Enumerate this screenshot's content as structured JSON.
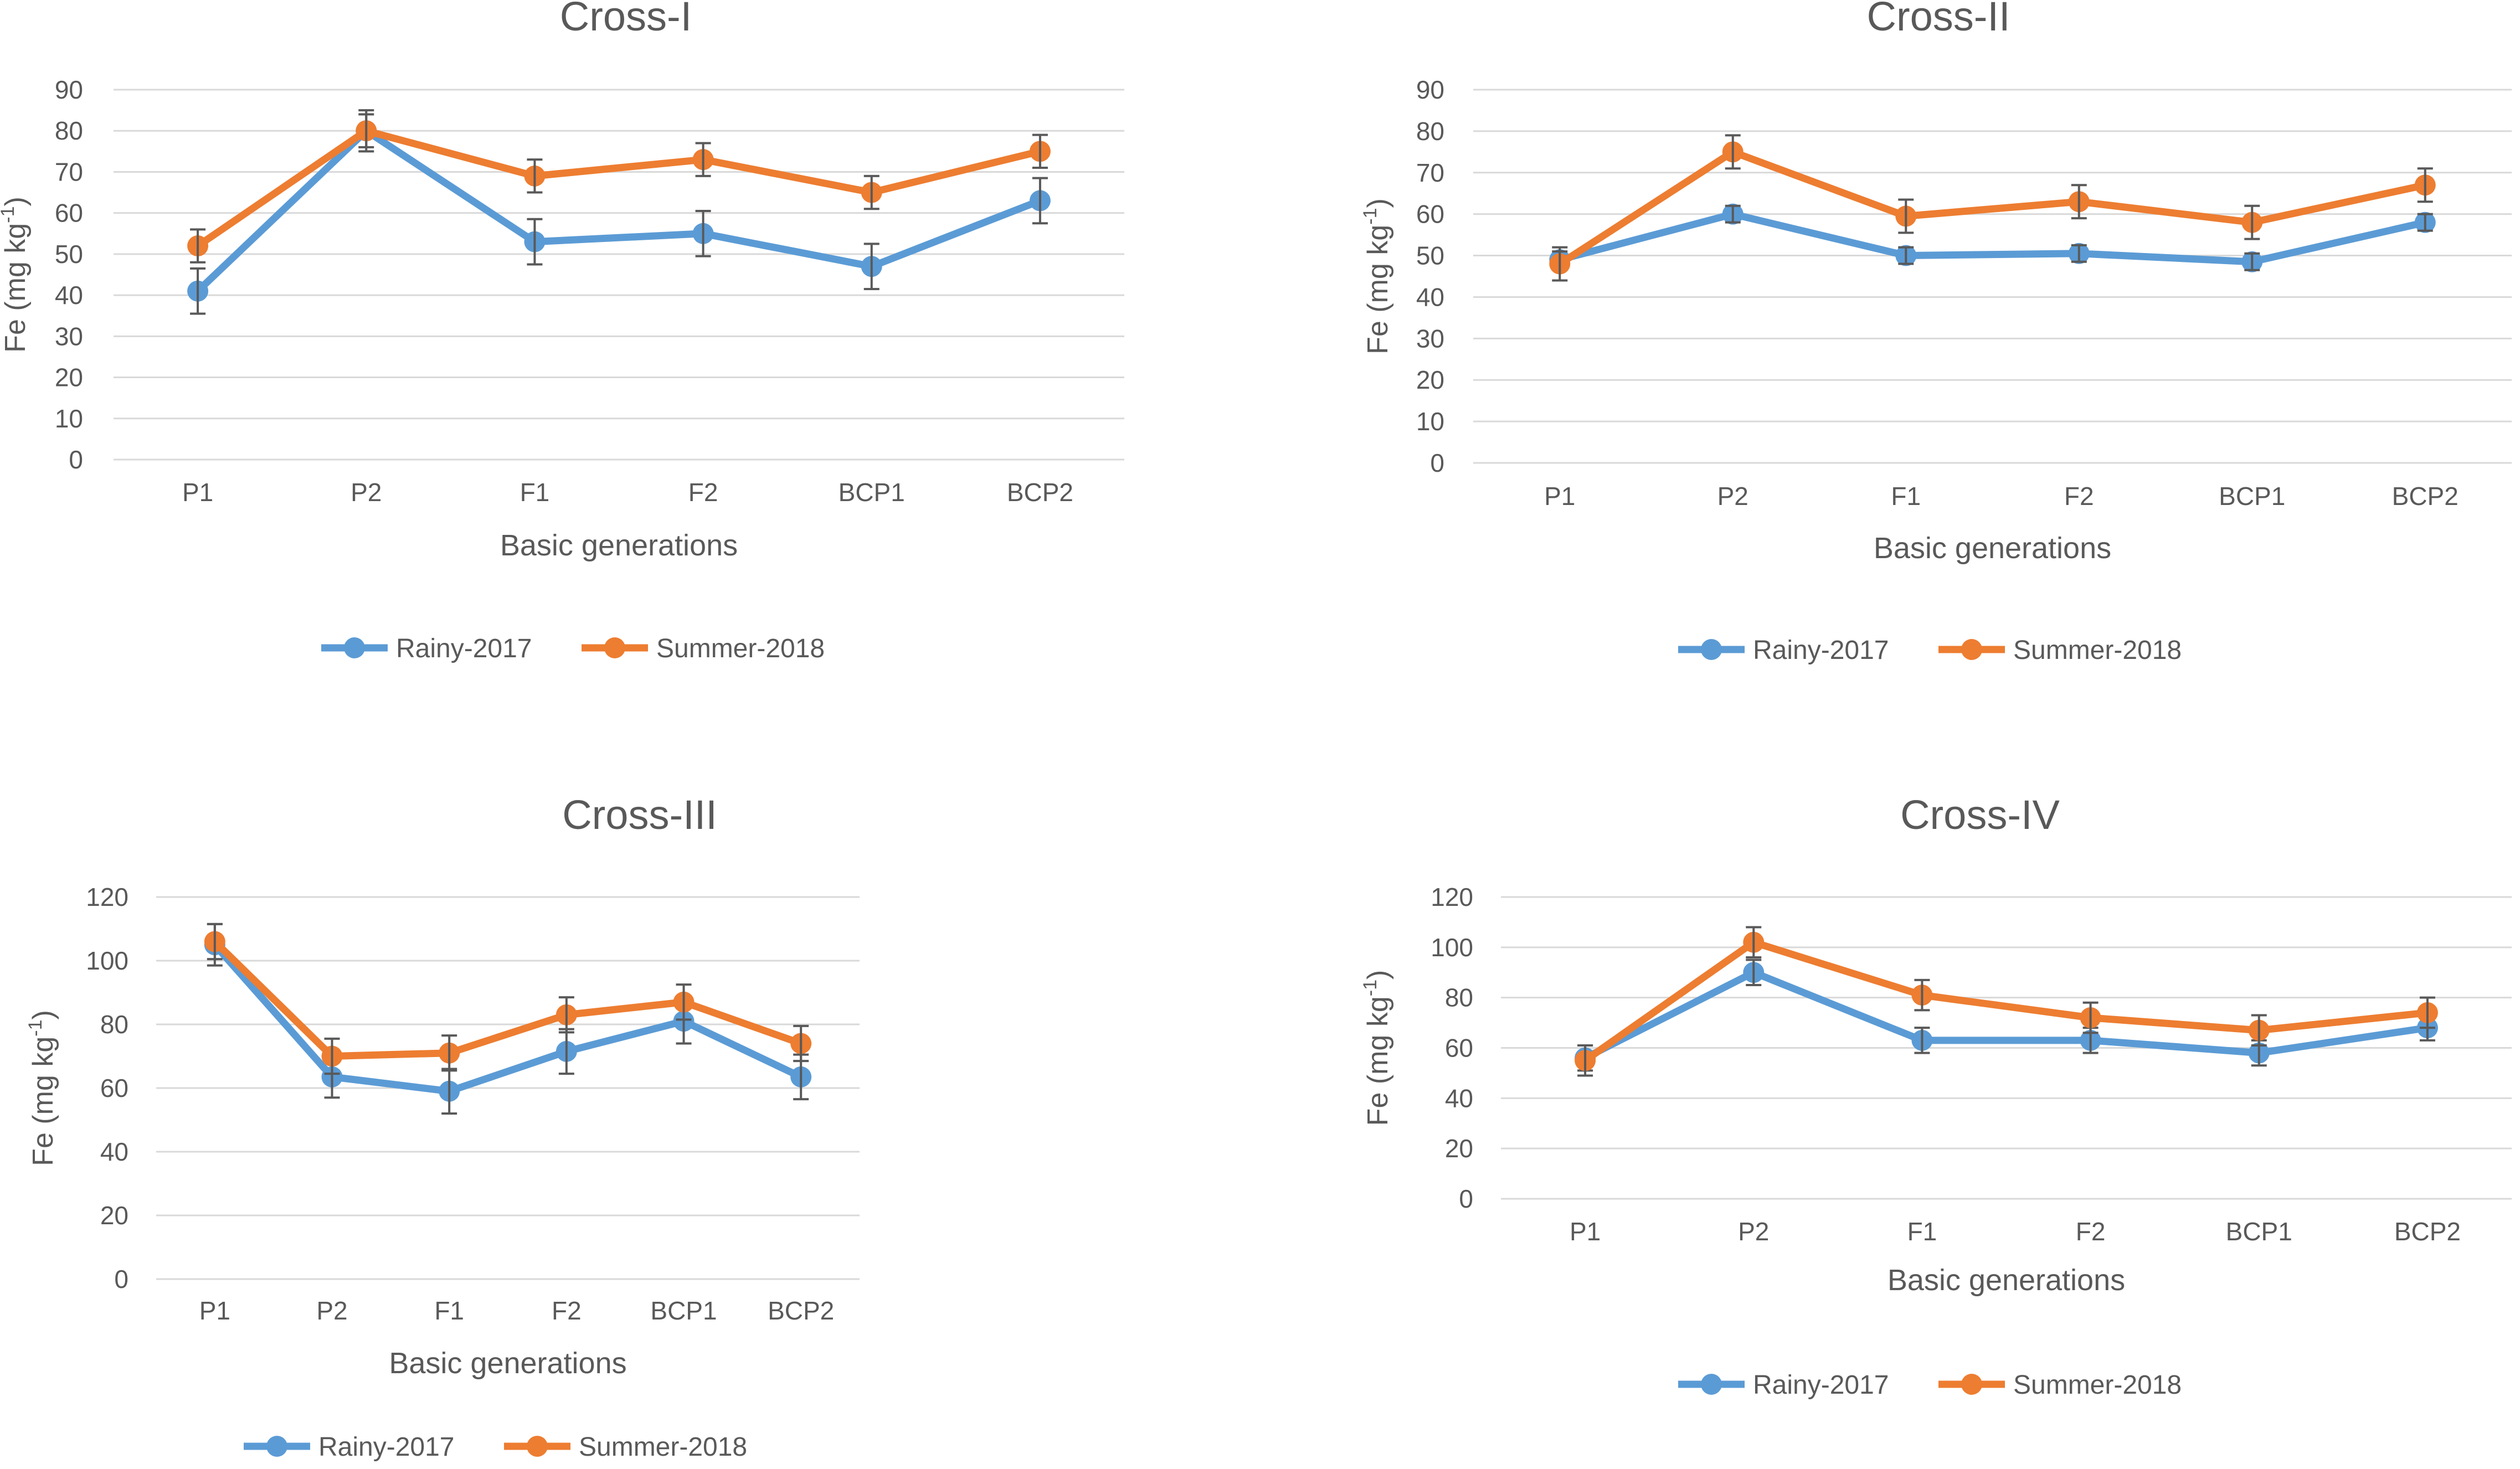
{
  "colors": {
    "rainy": "#5B9BD5",
    "summer": "#ED7D31",
    "grid": "#D9D9D9",
    "text": "#595959",
    "errbar": "#595959"
  },
  "chart_data": [
    {
      "type": "line",
      "title": "Cross-I",
      "xlabel": "Basic generations",
      "ylabel_main": "Fe (mg kg",
      "ylabel_sup": "-1",
      "ylabel_close": ")",
      "categories": [
        "P1",
        "P2",
        "F1",
        "F2",
        "BCP1",
        "BCP2"
      ],
      "ylim": [
        0,
        90
      ],
      "yticks": [
        0,
        10,
        20,
        30,
        40,
        50,
        60,
        70,
        80,
        90
      ],
      "grid": true,
      "legend_position": "bottom",
      "series": [
        {
          "name": "Rainy-2017",
          "values": [
            41,
            80,
            53,
            55,
            47,
            63
          ],
          "errors": [
            5.5,
            4,
            5.5,
            5.5,
            5.5,
            5.5
          ]
        },
        {
          "name": "Summer-2018",
          "values": [
            52,
            80,
            69,
            73,
            65,
            75
          ],
          "errors": [
            4,
            5,
            4,
            4,
            4,
            4
          ]
        }
      ]
    },
    {
      "type": "line",
      "title": "Cross-II",
      "xlabel": "Basic generations",
      "ylabel_main": "Fe (mg kg",
      "ylabel_sup": "-1",
      "ylabel_close": ")",
      "categories": [
        "P1",
        "P2",
        "F1",
        "F2",
        "BCP1",
        "BCP2"
      ],
      "ylim": [
        0,
        90
      ],
      "yticks": [
        0,
        10,
        20,
        30,
        40,
        50,
        60,
        70,
        80,
        90
      ],
      "grid": true,
      "legend_position": "bottom",
      "series": [
        {
          "name": "Rainy-2017",
          "values": [
            49,
            60,
            50,
            50.5,
            48.5,
            58
          ],
          "errors": [
            2,
            2,
            2,
            2,
            2,
            2
          ]
        },
        {
          "name": "Summer-2018",
          "values": [
            48,
            75,
            59.5,
            63,
            58,
            67
          ],
          "errors": [
            4,
            4,
            4,
            4,
            4,
            4
          ]
        }
      ]
    },
    {
      "type": "line",
      "title": "Cross-III",
      "xlabel": "Basic generations",
      "ylabel_main": "Fe (mg kg",
      "ylabel_sup": "-1",
      "ylabel_close": ")",
      "categories": [
        "P1",
        "P2",
        "F1",
        "F2",
        "BCP1",
        "BCP2"
      ],
      "ylim": [
        0,
        120
      ],
      "yticks": [
        0,
        20,
        40,
        60,
        80,
        100,
        120
      ],
      "grid": true,
      "legend_position": "bottom",
      "series": [
        {
          "name": "Rainy-2017",
          "values": [
            105,
            63.5,
            59,
            71.5,
            81,
            63.5
          ],
          "errors": [
            6.5,
            6.5,
            7,
            7,
            7,
            7
          ]
        },
        {
          "name": "Summer-2018",
          "values": [
            106,
            70,
            71,
            83,
            87,
            74
          ],
          "errors": [
            5.5,
            5.5,
            5.5,
            5.5,
            5.5,
            5.5
          ]
        }
      ]
    },
    {
      "type": "line",
      "title": "Cross-IV",
      "xlabel": "Basic generations",
      "ylabel_main": "Fe (mg kg",
      "ylabel_sup": "-1",
      "ylabel_close": ")",
      "categories": [
        "P1",
        "P2",
        "F1",
        "F2",
        "BCP1",
        "BCP2"
      ],
      "ylim": [
        0,
        120
      ],
      "yticks": [
        0,
        20,
        40,
        60,
        80,
        100,
        120
      ],
      "grid": true,
      "legend_position": "bottom",
      "series": [
        {
          "name": "Rainy-2017",
          "values": [
            56,
            90,
            63,
            63,
            58,
            68
          ],
          "errors": [
            5,
            5,
            5,
            5,
            5,
            5
          ]
        },
        {
          "name": "Summer-2018",
          "values": [
            55,
            102,
            81,
            72,
            67,
            74
          ],
          "errors": [
            6,
            6,
            6,
            6,
            6,
            6
          ]
        }
      ]
    }
  ]
}
